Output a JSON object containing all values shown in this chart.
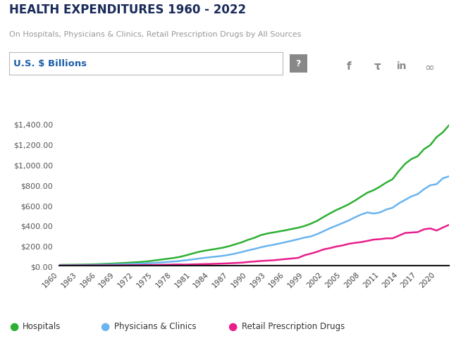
{
  "title": "HEALTH EXPENDITURES 1960 - 2022",
  "subtitle": "On Hospitals, Physicians & Clinics, Retail Prescription Drugs by All Sources",
  "ylabel_box": "U.S. $ Billions",
  "background_color": "#ffffff",
  "title_color": "#1a2b5a",
  "subtitle_color": "#999999",
  "ylabel_color": "#1a5fa8",
  "years": [
    1960,
    1961,
    1962,
    1963,
    1964,
    1965,
    1966,
    1967,
    1968,
    1969,
    1970,
    1971,
    1972,
    1973,
    1974,
    1975,
    1976,
    1977,
    1978,
    1979,
    1980,
    1981,
    1982,
    1983,
    1984,
    1985,
    1986,
    1987,
    1988,
    1989,
    1990,
    1991,
    1992,
    1993,
    1994,
    1995,
    1996,
    1997,
    1998,
    1999,
    2000,
    2001,
    2002,
    2003,
    2004,
    2005,
    2006,
    2007,
    2008,
    2009,
    2010,
    2011,
    2012,
    2013,
    2014,
    2015,
    2016,
    2017,
    2018,
    2019,
    2020,
    2021,
    2022
  ],
  "hospitals": [
    9.2,
    9.9,
    10.7,
    11.6,
    12.6,
    13.9,
    16.0,
    18.8,
    21.4,
    24.0,
    27.6,
    30.9,
    34.9,
    38.5,
    43.7,
    52.1,
    60.0,
    68.0,
    76.0,
    86.0,
    101.0,
    118.0,
    135.0,
    148.0,
    158.0,
    168.0,
    179.0,
    194.0,
    213.0,
    232.0,
    256.0,
    276.0,
    302.0,
    318.0,
    329.0,
    340.0,
    351.0,
    364.0,
    376.0,
    393.0,
    416.0,
    444.0,
    481.0,
    516.0,
    549.0,
    577.0,
    607.0,
    643.0,
    683.0,
    722.0,
    747.0,
    782.0,
    822.0,
    855.0,
    936.0,
    1007.0,
    1054.0,
    1082.0,
    1151.0,
    1192.0,
    1270.0,
    1318.0,
    1389.0
  ],
  "physicians": [
    5.7,
    6.1,
    6.6,
    7.2,
    7.9,
    8.5,
    9.9,
    11.3,
    12.9,
    14.4,
    15.9,
    18.0,
    20.3,
    22.5,
    25.3,
    28.7,
    32.5,
    37.1,
    42.0,
    47.3,
    54.0,
    62.0,
    70.0,
    78.0,
    85.0,
    92.0,
    99.0,
    109.0,
    121.0,
    136.0,
    152.0,
    166.0,
    182.0,
    196.0,
    207.0,
    220.0,
    234.0,
    248.0,
    263.0,
    279.0,
    290.0,
    313.0,
    341.0,
    370.0,
    395.0,
    421.0,
    447.0,
    478.0,
    506.0,
    527.0,
    516.0,
    527.0,
    556.0,
    573.0,
    617.0,
    651.0,
    685.0,
    708.0,
    756.0,
    795.0,
    806.0,
    864.0,
    884.0
  ],
  "drugs": [
    2.7,
    2.9,
    3.0,
    3.2,
    3.5,
    3.7,
    4.0,
    4.3,
    4.6,
    4.9,
    5.5,
    6.0,
    6.6,
    7.1,
    8.1,
    8.8,
    9.8,
    11.1,
    12.3,
    13.4,
    12.0,
    14.0,
    15.6,
    17.2,
    18.5,
    20.7,
    22.6,
    25.0,
    28.0,
    31.5,
    37.7,
    42.7,
    47.6,
    51.2,
    54.6,
    60.9,
    67.0,
    72.3,
    78.9,
    104.6,
    120.6,
    138.6,
    161.9,
    174.1,
    189.7,
    200.7,
    216.7,
    226.8,
    234.1,
    246.3,
    259.1,
    263.3,
    271.1,
    271.4,
    297.7,
    324.6,
    328.6,
    333.0,
    360.2,
    369.0,
    348.4,
    378.0,
    405.0
  ],
  "hospital_color": "#2db033",
  "physician_color": "#6ab4f0",
  "drug_color": "#e91e8c",
  "ylim": [
    0,
    1450
  ],
  "yticks": [
    0,
    200,
    400,
    600,
    800,
    1000,
    1200,
    1400
  ],
  "legend_labels": [
    "Hospitals",
    "Physicians & Clinics",
    "Retail Prescription Drugs"
  ]
}
